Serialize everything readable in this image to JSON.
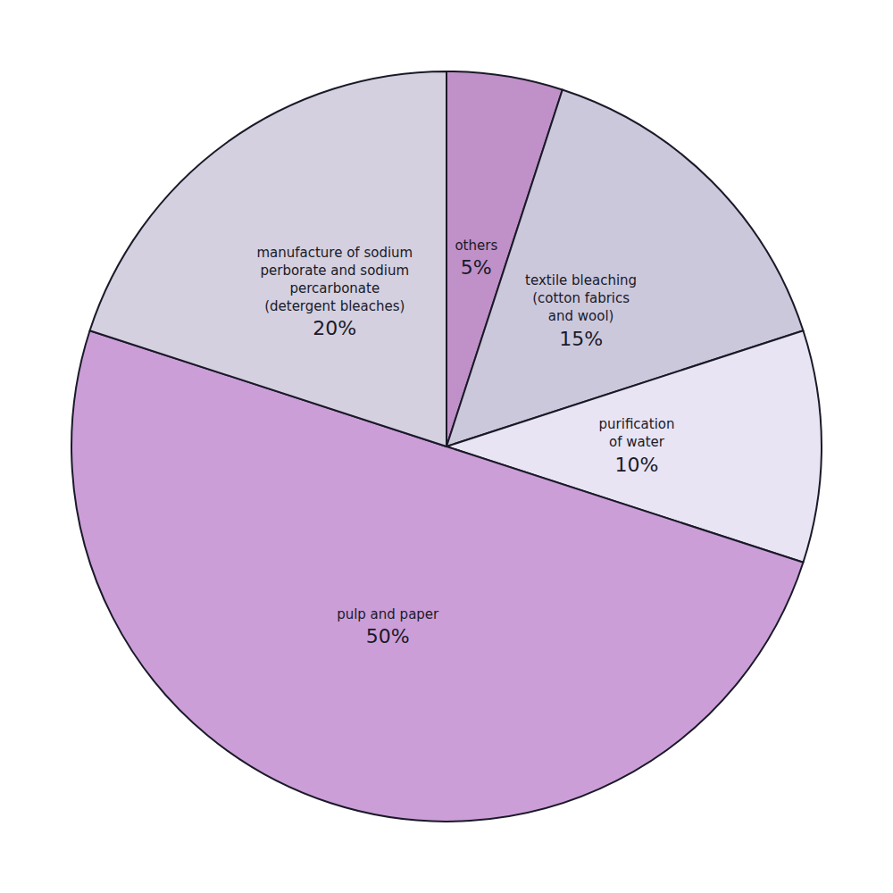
{
  "chart_data": {
    "type": "pie",
    "categories": [
      "others",
      "textile bleaching\n(cotton fabrics\nand wool)",
      "purification\nof water",
      "pulp and paper",
      "manufacture of sodium\nperborate and sodium\npercarbonate\n(detergent bleaches)"
    ],
    "values": [
      5,
      15,
      10,
      50,
      20
    ],
    "value_labels": [
      "5%",
      "15%",
      "10%",
      "50%",
      "20%"
    ],
    "colors": [
      "#c090c8",
      "#ccc8dc",
      "#e8e4f4",
      "#cc9ed8",
      "#d4d0e0"
    ],
    "data_labels": true
  }
}
